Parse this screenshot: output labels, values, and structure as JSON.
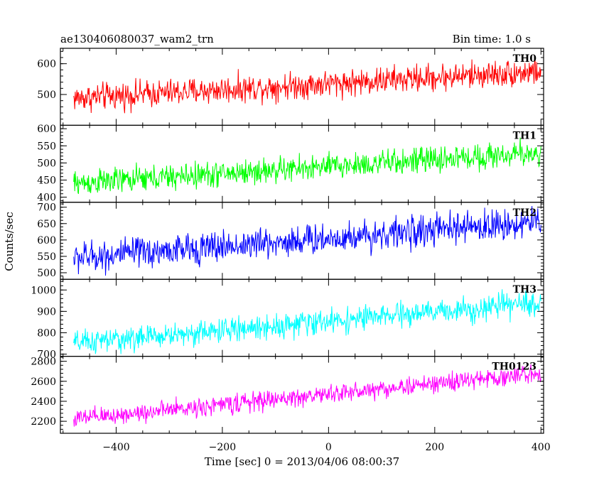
{
  "header": {
    "title": "ae130406080037_wam2_trn",
    "bin_time": "Bin time: 1.0 s"
  },
  "chart_data": {
    "type": "line",
    "title": "ae130406080037_wam2_trn",
    "xlabel": "Time [sec] 0 = 2013/04/06 08:00:37",
    "ylabel": "Counts/sec",
    "xlim": [
      -505,
      405
    ],
    "x_ticks": [
      -400,
      -200,
      0,
      200,
      400
    ],
    "x_tick_labels": [
      "−400",
      "−200",
      "0",
      "200",
      "400"
    ],
    "grid": false,
    "shared_x": true,
    "panels": [
      {
        "name": "TH0",
        "color": "#ff0000",
        "ylim": [
          400,
          650
        ],
        "y_ticks": [
          500,
          600
        ],
        "y_tick_labels": [
          "500",
          "600"
        ],
        "trend": {
          "x": [
            -480,
            400
          ],
          "y": [
            488,
            575
          ]
        },
        "noise_amplitude": 35
      },
      {
        "name": "TH1",
        "color": "#00ff00",
        "ylim": [
          385,
          610
        ],
        "y_ticks": [
          400,
          450,
          500,
          550,
          600
        ],
        "y_tick_labels": [
          "400",
          "450",
          "500",
          "550",
          "600"
        ],
        "trend": {
          "x": [
            -480,
            400
          ],
          "y": [
            440,
            530
          ]
        },
        "noise_amplitude": 30
      },
      {
        "name": "TH2",
        "color": "#0000ff",
        "ylim": [
          480,
          715
        ],
        "y_ticks": [
          500,
          550,
          600,
          650,
          700
        ],
        "y_tick_labels": [
          "500",
          "550",
          "600",
          "650",
          "700"
        ],
        "trend": {
          "x": [
            -480,
            400
          ],
          "y": [
            545,
            655
          ]
        },
        "noise_amplitude": 38
      },
      {
        "name": "TH3",
        "color": "#00ffff",
        "ylim": [
          690,
          1050
        ],
        "y_ticks": [
          700,
          800,
          900,
          1000
        ],
        "y_tick_labels": [
          "700",
          "800",
          "900",
          "1000"
        ],
        "trend": {
          "x": [
            -480,
            400
          ],
          "y": [
            750,
            940
          ]
        },
        "noise_amplitude": 45
      },
      {
        "name": "TH0123",
        "color": "#ff00ff",
        "ylim": [
          2080,
          2850
        ],
        "y_ticks": [
          2200,
          2400,
          2600,
          2800
        ],
        "y_tick_labels": [
          "2200",
          "2400",
          "2600",
          "2800"
        ],
        "trend": {
          "x": [
            -480,
            400
          ],
          "y": [
            2220,
            2680
          ]
        },
        "noise_amplitude": 75
      }
    ]
  }
}
